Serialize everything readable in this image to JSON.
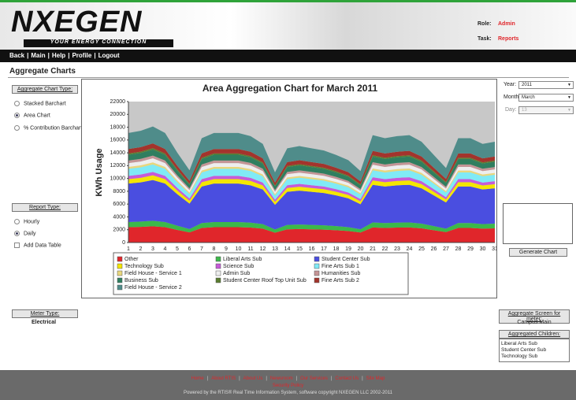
{
  "header": {
    "logo": "NXEGEN",
    "tagline": "YOUR ENERGY CONNECTION",
    "role_label": "Role:",
    "role": "Admin",
    "task_label": "Task:",
    "task": "Reports"
  },
  "nav": [
    "Back",
    "Main",
    "Help",
    "Profile",
    "Logout"
  ],
  "page_title": "Aggregate Charts",
  "left_panel": {
    "chart_type_label": "Aggregate Chart Type:",
    "chart_types": [
      "Stacked Barchart",
      "Area Chart",
      "% Contribution Barchart"
    ],
    "report_type_label": "Report Type:",
    "report_types": [
      "Hourly",
      "Daily"
    ],
    "add_table": "Add Data Table",
    "meter_type_label": "Meter Type:",
    "meter_type": "Electrical"
  },
  "right_panel": {
    "year_label": "Year:",
    "year": "2011",
    "month_label": "Month:",
    "month": "March",
    "day_label": "Day:",
    "day": "13",
    "button": "Generate Chart",
    "meter_label": "Aggregate Screen for meter:",
    "meter": "Campus Main",
    "children_label": "Aggregated Children:",
    "children": [
      "Liberal Arts Sub",
      "Student Center Sub",
      "Technology Sub"
    ]
  },
  "footer": {
    "links": [
      "Home",
      "About RTIS",
      "About Us",
      "Newsroom",
      "Our Services",
      "Contact Us",
      "Site Map"
    ],
    "security": "Security Policy",
    "powered": "Powered by the RTIS® Real Time Information System, software copyright NXEGEN LLC 2002-2011"
  },
  "chart_data": {
    "type": "area",
    "title": "Area Aggregation Chart for March 2011",
    "y_label": "KWh Usage",
    "categories": [
      "1",
      "2",
      "3",
      "4",
      "5",
      "6",
      "7",
      "8",
      "9",
      "10",
      "11",
      "12",
      "13",
      "14",
      "15",
      "16",
      "17",
      "18",
      "19",
      "20",
      "21",
      "22",
      "23",
      "24",
      "25",
      "26",
      "27",
      "28",
      "29",
      "30",
      "31"
    ],
    "ylim": [
      0,
      22000
    ],
    "yticks": [
      0,
      2000,
      4000,
      6000,
      8000,
      10000,
      12000,
      14000,
      16000,
      18000,
      20000,
      22000
    ],
    "series": [
      {
        "name": "Other",
        "color": "#e0262b",
        "values": [
          2400,
          2450,
          2540,
          2400,
          1970,
          1580,
          2280,
          2400,
          2400,
          2400,
          2330,
          2160,
          1540,
          2060,
          2110,
          2060,
          2020,
          1920,
          1800,
          1560,
          2350,
          2280,
          2330,
          2350,
          2210,
          1920,
          1630,
          2280,
          2280,
          2160,
          2210
        ]
      },
      {
        "name": "Liberal Arts Sub",
        "color": "#3cb84a",
        "values": [
          800,
          820,
          850,
          800,
          660,
          530,
          760,
          800,
          800,
          800,
          780,
          720,
          510,
          690,
          700,
          690,
          670,
          640,
          600,
          520,
          780,
          760,
          780,
          780,
          740,
          640,
          540,
          760,
          760,
          720,
          740
        ]
      },
      {
        "name": "Student Center Sub",
        "color": "#4a4ee0",
        "values": [
          6000,
          6120,
          6360,
          6000,
          4920,
          3960,
          5700,
          6000,
          6000,
          6000,
          5820,
          5400,
          3840,
          5160,
          5280,
          5160,
          5040,
          4800,
          4500,
          3900,
          5880,
          5700,
          5820,
          5880,
          5520,
          4800,
          4080,
          5700,
          5700,
          5400,
          5520
        ]
      },
      {
        "name": "Technology Sub",
        "color": "#f4e600",
        "values": [
          700,
          710,
          740,
          700,
          570,
          460,
          670,
          700,
          700,
          700,
          680,
          630,
          450,
          600,
          620,
          600,
          590,
          560,
          530,
          460,
          690,
          670,
          680,
          690,
          640,
          560,
          480,
          670,
          670,
          630,
          640
        ]
      },
      {
        "name": "Science Sub",
        "color": "#c65bd8",
        "values": [
          500,
          510,
          530,
          500,
          410,
          330,
          480,
          500,
          500,
          500,
          490,
          450,
          320,
          430,
          440,
          430,
          420,
          400,
          380,
          330,
          490,
          480,
          490,
          490,
          460,
          400,
          340,
          480,
          480,
          450,
          460
        ]
      },
      {
        "name": "Fine Arts Sub 1",
        "color": "#80eaf6",
        "values": [
          1100,
          1120,
          1170,
          1100,
          900,
          730,
          1050,
          1100,
          1100,
          1100,
          1070,
          990,
          700,
          950,
          970,
          950,
          920,
          880,
          830,
          720,
          1080,
          1050,
          1070,
          1080,
          1010,
          880,
          750,
          1050,
          1050,
          990,
          1010
        ]
      },
      {
        "name": "Field House - Service 1",
        "color": "#e9d77c",
        "values": [
          300,
          310,
          320,
          300,
          250,
          200,
          290,
          300,
          300,
          300,
          290,
          270,
          190,
          260,
          260,
          260,
          250,
          240,
          230,
          200,
          290,
          290,
          290,
          290,
          280,
          240,
          200,
          290,
          290,
          270,
          280
        ]
      },
      {
        "name": "Admin Sub",
        "color": "#eeeeee",
        "values": [
          600,
          610,
          640,
          600,
          490,
          400,
          570,
          600,
          600,
          600,
          580,
          540,
          380,
          520,
          530,
          520,
          500,
          480,
          450,
          390,
          590,
          570,
          580,
          590,
          550,
          480,
          410,
          570,
          570,
          540,
          550
        ]
      },
      {
        "name": "Humanities Sub",
        "color": "#c49596",
        "values": [
          400,
          410,
          420,
          400,
          330,
          260,
          380,
          400,
          400,
          400,
          390,
          360,
          260,
          340,
          350,
          340,
          340,
          320,
          300,
          260,
          390,
          380,
          390,
          390,
          370,
          320,
          270,
          380,
          380,
          360,
          370
        ]
      },
      {
        "name": "Business Sub",
        "color": "#2f7e5f",
        "values": [
          900,
          920,
          950,
          900,
          740,
          590,
          860,
          900,
          900,
          900,
          870,
          810,
          580,
          770,
          790,
          770,
          760,
          720,
          680,
          590,
          880,
          860,
          870,
          880,
          830,
          720,
          610,
          860,
          860,
          810,
          830
        ]
      },
      {
        "name": "Student Center Roof Top Unit Sub",
        "color": "#5a7d30",
        "values": [
          200,
          200,
          210,
          200,
          160,
          130,
          190,
          200,
          200,
          200,
          190,
          180,
          130,
          170,
          180,
          170,
          170,
          160,
          150,
          130,
          200,
          190,
          190,
          200,
          180,
          160,
          140,
          190,
          190,
          180,
          180
        ]
      },
      {
        "name": "Fine Arts Sub 2",
        "color": "#a3342c",
        "values": [
          700,
          710,
          740,
          700,
          570,
          460,
          670,
          700,
          700,
          700,
          680,
          630,
          450,
          600,
          620,
          600,
          590,
          560,
          530,
          460,
          690,
          670,
          680,
          690,
          640,
          560,
          480,
          670,
          670,
          630,
          640
        ]
      },
      {
        "name": "Field House - Service 2",
        "color": "#4f8c8a",
        "values": [
          2500,
          2550,
          2650,
          2500,
          2050,
          1650,
          2380,
          2500,
          2500,
          2500,
          2430,
          2250,
          1600,
          2150,
          2200,
          2150,
          2100,
          2000,
          1880,
          1630,
          2450,
          2380,
          2430,
          2450,
          2300,
          2000,
          1700,
          2380,
          2380,
          2250,
          2300
        ]
      }
    ]
  }
}
